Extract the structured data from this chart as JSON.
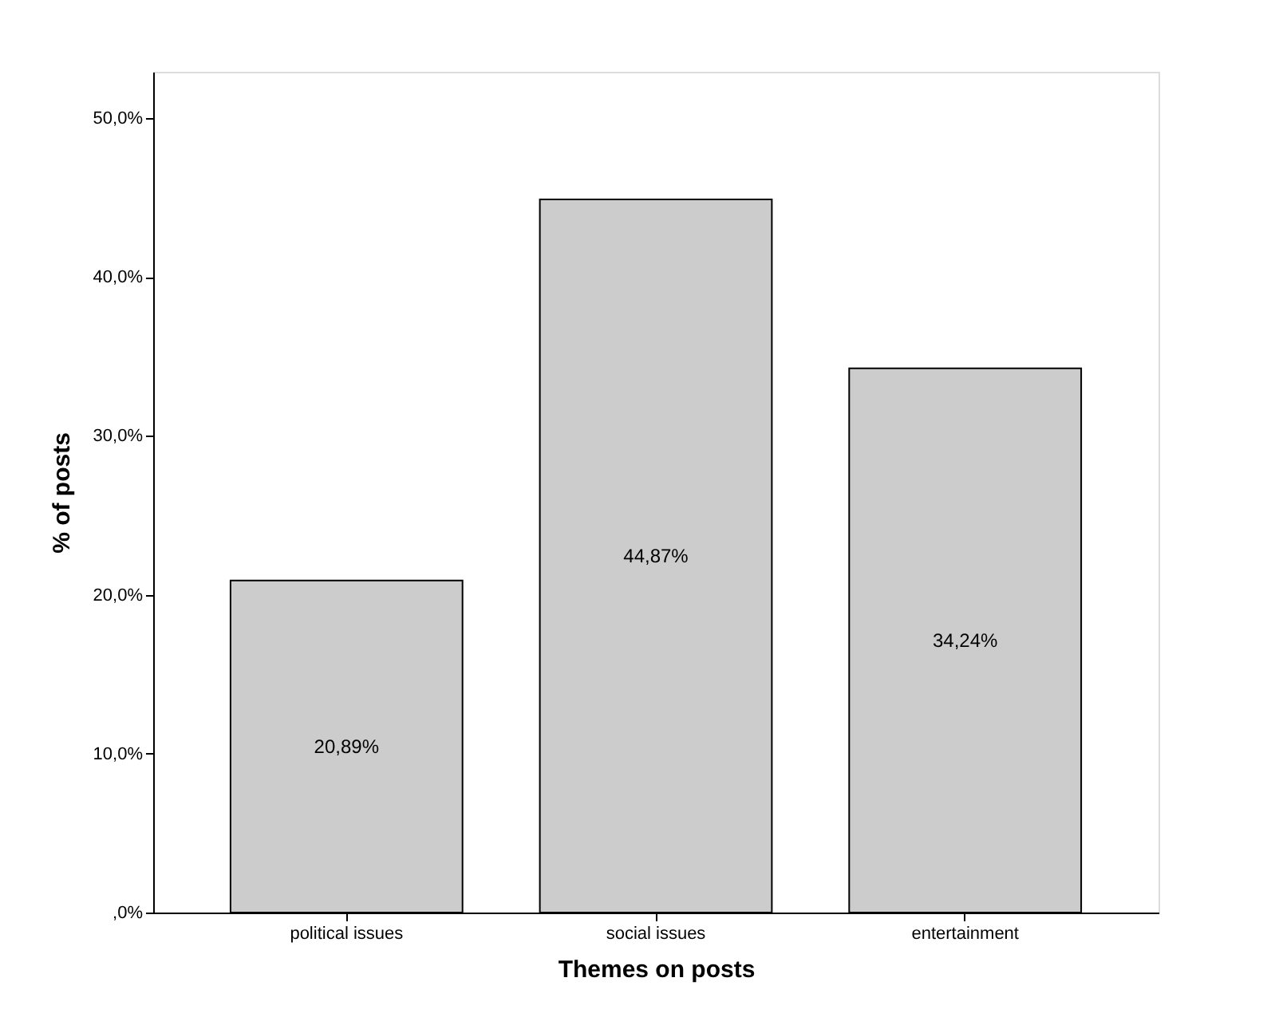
{
  "chart_data": {
    "type": "bar",
    "xlabel": "Themes on posts",
    "ylabel": "% of posts",
    "categories": [
      "political issues",
      "social issues",
      "entertainment"
    ],
    "values": [
      20.89,
      44.87,
      34.24
    ],
    "value_labels": [
      "20,89%",
      "44,87%",
      "34,24%"
    ],
    "color": "#cccccc",
    "ylim": [
      0,
      52.9
    ],
    "yticks": [
      {
        "value": 0,
        "label": ",0%"
      },
      {
        "value": 10,
        "label": "10,0%"
      },
      {
        "value": 20,
        "label": "20,0%"
      },
      {
        "value": 30,
        "label": "30,0%"
      },
      {
        "value": 40,
        "label": "40,0%"
      },
      {
        "value": 50,
        "label": "50,0%"
      }
    ],
    "grid": false
  }
}
